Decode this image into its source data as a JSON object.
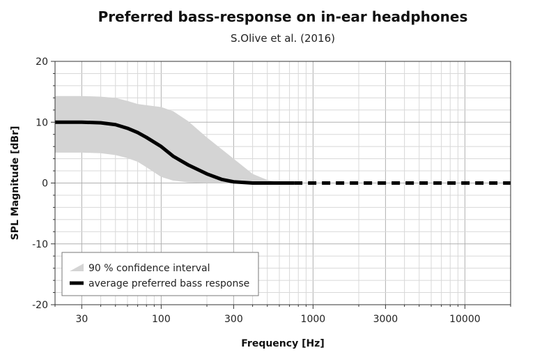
{
  "chart_data": {
    "type": "area",
    "title": "Preferred bass-response on in-ear headphones",
    "subtitle": "S.Olive et al. (2016)",
    "xlabel": "Frequency [Hz]",
    "ylabel": "SPL Magnitude [dBr]",
    "xscale": "log",
    "xlim": [
      20,
      20000
    ],
    "ylim": [
      -20,
      20
    ],
    "xticks": [
      30,
      100,
      300,
      1000,
      3000,
      10000
    ],
    "xtick_labels": [
      "30",
      "100",
      "300",
      "1000",
      "3000",
      "10000"
    ],
    "yticks": [
      20,
      10,
      0,
      -10,
      -20
    ],
    "ytick_labels": [
      "20",
      "10",
      "0",
      "-10",
      "-20"
    ],
    "grid": true,
    "legend": "bottom-left",
    "series": [
      {
        "name": "90 % confidence interval",
        "kind": "band",
        "color": "#d4d4d4",
        "x": [
          20,
          30,
          40,
          50,
          60,
          70,
          80,
          100,
          120,
          150,
          200,
          300,
          400,
          500,
          600,
          750,
          20000
        ],
        "upper": [
          14.3,
          14.3,
          14.2,
          14.0,
          13.5,
          13.0,
          12.8,
          12.5,
          11.8,
          10.2,
          7.5,
          4.0,
          1.5,
          0.5,
          0.1,
          0,
          0
        ],
        "lower": [
          5.0,
          5.0,
          4.9,
          4.6,
          4.1,
          3.5,
          2.6,
          1.0,
          0.4,
          0.1,
          0,
          0,
          0,
          0,
          0,
          0,
          0
        ]
      },
      {
        "name": "average preferred bass response",
        "kind": "line",
        "color": "#000000",
        "x": [
          20,
          30,
          40,
          50,
          60,
          70,
          80,
          100,
          120,
          150,
          200,
          250,
          300,
          400,
          750
        ],
        "y": [
          10,
          10,
          9.9,
          9.6,
          9.0,
          8.3,
          7.5,
          6.0,
          4.4,
          3.0,
          1.5,
          0.6,
          0.2,
          0,
          0
        ]
      },
      {
        "name": "",
        "kind": "dashed-extension",
        "color": "#000000",
        "x": [
          750,
          20000
        ],
        "y": [
          0,
          0
        ]
      }
    ]
  }
}
